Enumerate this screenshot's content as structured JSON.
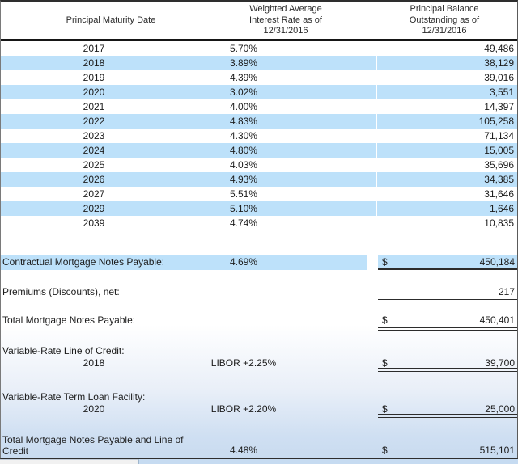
{
  "table": {
    "headers": {
      "maturity": "Principal Maturity Date",
      "rate": "Weighted Average\nInterest Rate as of\n12/31/2016",
      "balance": "Principal Balance\nOutstanding as of\n12/31/2016"
    },
    "rows": [
      {
        "year": "2017",
        "rate": "5.70%",
        "balance": "49,486"
      },
      {
        "year": "2018",
        "rate": "3.89%",
        "balance": "38,129"
      },
      {
        "year": "2019",
        "rate": "4.39%",
        "balance": "39,016"
      },
      {
        "year": "2020",
        "rate": "3.02%",
        "balance": "3,551"
      },
      {
        "year": "2021",
        "rate": "4.00%",
        "balance": "14,397"
      },
      {
        "year": "2022",
        "rate": "4.83%",
        "balance": "105,258"
      },
      {
        "year": "2023",
        "rate": "4.30%",
        "balance": "71,134"
      },
      {
        "year": "2024",
        "rate": "4.80%",
        "balance": "15,005"
      },
      {
        "year": "2025",
        "rate": "4.03%",
        "balance": "35,696"
      },
      {
        "year": "2026",
        "rate": "4.93%",
        "balance": "34,385"
      },
      {
        "year": "2027",
        "rate": "5.51%",
        "balance": "31,646"
      },
      {
        "year": "2029",
        "rate": "5.10%",
        "balance": "1,646"
      },
      {
        "year": "2039",
        "rate": "4.74%",
        "balance": "10,835"
      }
    ],
    "contractual": {
      "label": "Contractual Mortgage Notes Payable:",
      "rate": "4.69%",
      "currency": "$",
      "balance": "450,184"
    },
    "premiums": {
      "label": "Premiums (Discounts), net:",
      "balance": "217"
    },
    "total_mortgage": {
      "label": "Total Mortgage Notes Payable:",
      "currency": "$",
      "balance": "450,401"
    },
    "line_of_credit": {
      "label": "Variable-Rate Line of Credit:",
      "year": "2018",
      "rate": "LIBOR +2.25%",
      "currency": "$",
      "balance": "39,700"
    },
    "term_loan": {
      "label": "Variable-Rate Term Loan Facility:",
      "year": "2020",
      "rate": "LIBOR +2.20%",
      "currency": "$",
      "balance": "25,000"
    },
    "grand_total": {
      "label": "Total Mortgage Notes Payable and Line of\nCredit",
      "rate": "4.48%",
      "currency": "$",
      "balance": "515,101"
    }
  },
  "colors": {
    "row_highlight": "#bde1fa",
    "gradient_bottom": "#c7daef",
    "rule_dark": "#2c2c2c",
    "footer_left": "#f1f1f1",
    "footer_right": "#c6dbf1"
  }
}
